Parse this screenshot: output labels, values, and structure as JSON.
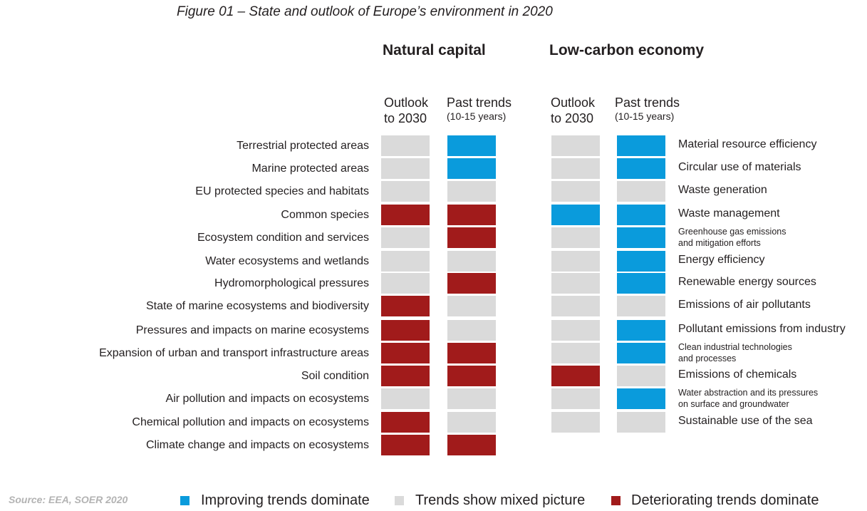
{
  "figure_title": "Figure 01 – State and outlook of Europe’s environment in 2020",
  "source": "Source: EEA, SOER 2020",
  "colors": {
    "improving": "#0a9bdc",
    "mixed": "#dadada",
    "deteriorating": "#a11b1b"
  },
  "chart_data": [
    {
      "type": "table",
      "title": "Natural capital",
      "columns": [
        {
          "label": "Outlook",
          "label2": "to 2030",
          "sub": ""
        },
        {
          "label": "Past trends",
          "label2": "",
          "sub": "(10-15 years)"
        }
      ],
      "rows": [
        {
          "label": "Terrestrial protected areas",
          "outlook": "mixed",
          "past": "improving"
        },
        {
          "label": "Marine protected areas",
          "outlook": "mixed",
          "past": "improving"
        },
        {
          "label": "EU protected species and habitats",
          "outlook": "mixed",
          "past": "mixed"
        },
        {
          "label": "Common species",
          "outlook": "deteriorating",
          "past": "deteriorating"
        },
        {
          "label": "Ecosystem condition and services",
          "outlook": "mixed",
          "past": "deteriorating"
        },
        {
          "label": "Water ecosystems and wetlands",
          "outlook": "mixed",
          "past": "mixed"
        },
        {
          "label": "Hydromorphological pressures",
          "outlook": "mixed",
          "past": "deteriorating"
        },
        {
          "label": "State of marine ecosystems and biodiversity",
          "outlook": "deteriorating",
          "past": "mixed"
        },
        {
          "label": "Pressures and impacts on marine ecosystems",
          "outlook": "deteriorating",
          "past": "mixed"
        },
        {
          "label": "Expansion of urban and transport infrastructure areas",
          "outlook": "deteriorating",
          "past": "deteriorating"
        },
        {
          "label": "Soil condition",
          "outlook": "deteriorating",
          "past": "deteriorating"
        },
        {
          "label": "Air pollution and impacts on ecosystems",
          "outlook": "mixed",
          "past": "mixed"
        },
        {
          "label": "Chemical pollution and impacts on ecosystems",
          "outlook": "deteriorating",
          "past": "mixed"
        },
        {
          "label": "Climate change and impacts on ecosystems",
          "outlook": "deteriorating",
          "past": "deteriorating"
        }
      ]
    },
    {
      "type": "table",
      "title": "Low-carbon economy",
      "columns": [
        {
          "label": "Outlook",
          "label2": "to 2030",
          "sub": ""
        },
        {
          "label": "Past trends",
          "label2": "",
          "sub": "(10-15 years)"
        }
      ],
      "rows": [
        {
          "label": "Material resource efficiency",
          "label2": "",
          "outlook": "mixed",
          "past": "improving"
        },
        {
          "label": "Circular use of materials",
          "label2": "",
          "outlook": "mixed",
          "past": "improving"
        },
        {
          "label": "Waste generation",
          "label2": "",
          "outlook": "mixed",
          "past": "mixed"
        },
        {
          "label": "Waste management",
          "label2": "",
          "outlook": "improving",
          "past": "improving"
        },
        {
          "label": "Greenhouse gas emissions",
          "label2": "and mitigation efforts",
          "outlook": "mixed",
          "past": "improving"
        },
        {
          "label": "Energy efficiency",
          "label2": "",
          "outlook": "mixed",
          "past": "improving"
        },
        {
          "label": "Renewable energy sources",
          "label2": "",
          "outlook": "mixed",
          "past": "improving"
        },
        {
          "label": "Emissions of air pollutants",
          "label2": "",
          "outlook": "mixed",
          "past": "mixed"
        },
        {
          "label": "Pollutant emissions from industry",
          "label2": "",
          "outlook": "mixed",
          "past": "improving"
        },
        {
          "label": "Clean industrial technologies",
          "label2": "and processes",
          "outlook": "mixed",
          "past": "improving"
        },
        {
          "label": "Emissions of chemicals",
          "label2": "",
          "outlook": "deteriorating",
          "past": "mixed"
        },
        {
          "label": "Water abstraction and its pressures",
          "label2": "on surface and groundwater",
          "outlook": "mixed",
          "past": "improving"
        },
        {
          "label": "Sustainable use of the sea",
          "label2": "",
          "outlook": "mixed",
          "past": "mixed"
        }
      ]
    }
  ],
  "legend": [
    {
      "key": "improving",
      "label": "Improving trends dominate"
    },
    {
      "key": "mixed",
      "label": "Trends show mixed picture"
    },
    {
      "key": "deteriorating",
      "label": "Deteriorating trends dominate"
    }
  ]
}
